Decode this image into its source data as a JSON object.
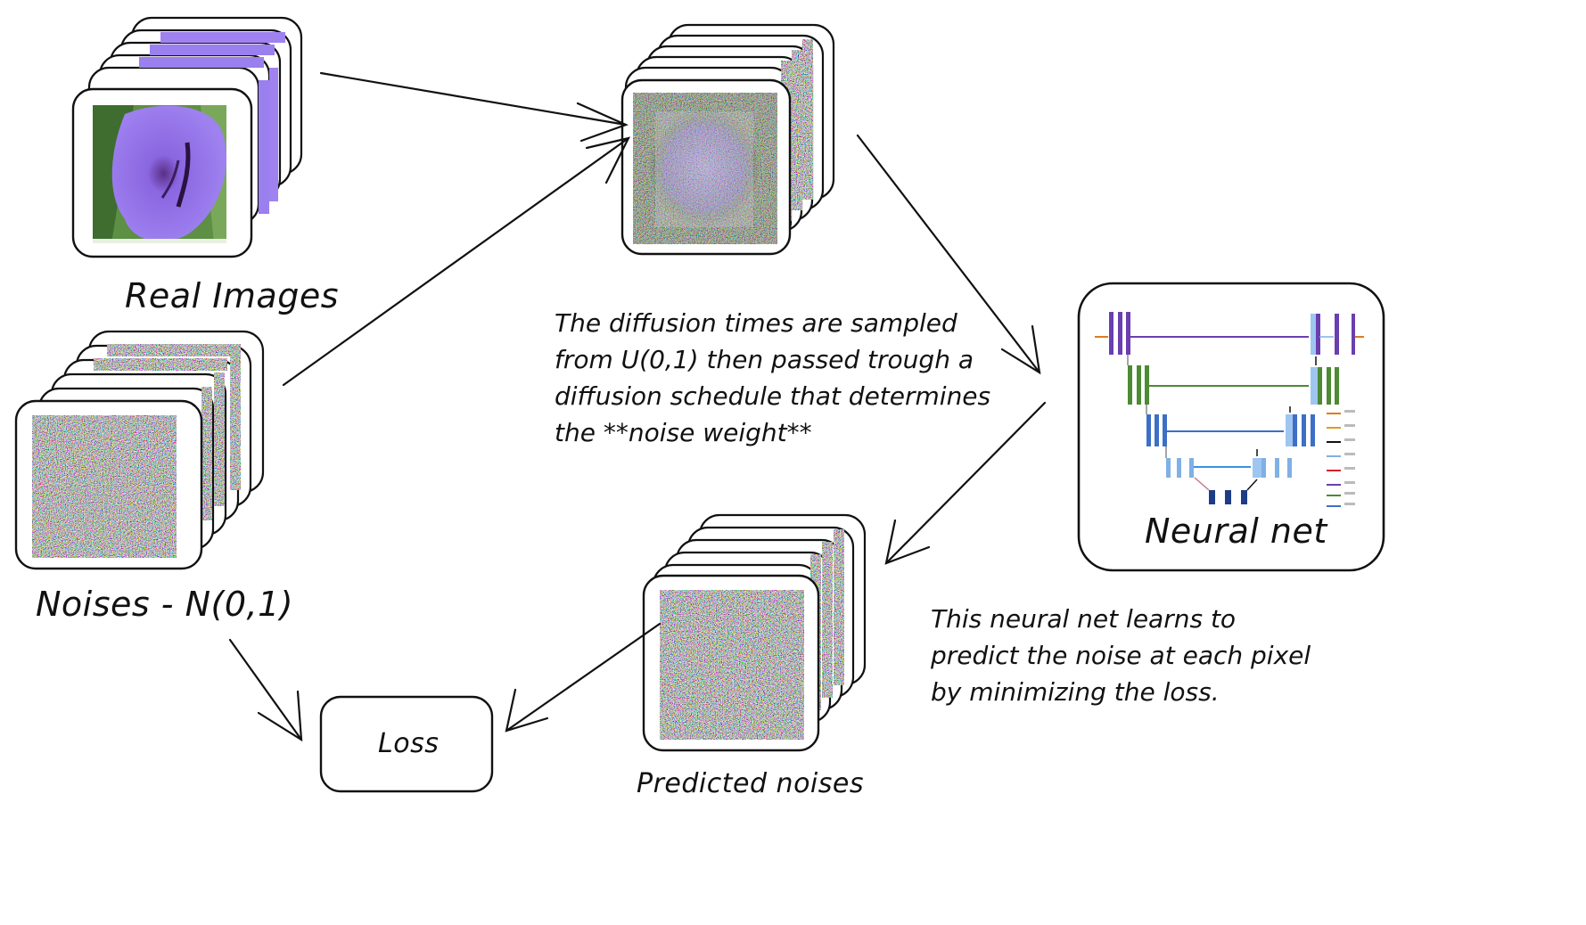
{
  "labels": {
    "real_images": "Real Images",
    "noises": "Noises - N(0,1)",
    "loss": "Loss",
    "predicted_noises": "Predicted noises",
    "neural_net": "Neural net"
  },
  "notes": {
    "diffusion_lines": [
      "The diffusion times are sampled",
      "from U(0,1) then passed trough a",
      "diffusion schedule that determines",
      "the **noise weight**"
    ],
    "neural_net_lines": [
      "This neural net learns to",
      "predict the noise at each pixel",
      "by minimizing the loss."
    ]
  },
  "colors": {
    "ink": "#111111",
    "flower_petal": "#8f6fe6",
    "flower_dark": "#3a1d5e",
    "leaf": "#4f8a3c",
    "unet_purple": "#6a3fb0",
    "unet_green": "#4d8a34",
    "unet_blue": "#3d6fc6",
    "unet_lightblue": "#7fb0e6",
    "unet_navy": "#1f3d86",
    "unet_orange": "#e07a1e",
    "unet_red": "#d8202a"
  },
  "icons": [
    "flower-image-stack",
    "noise-image-stack",
    "noisy-flower-image-stack",
    "unet-architecture-icon"
  ]
}
